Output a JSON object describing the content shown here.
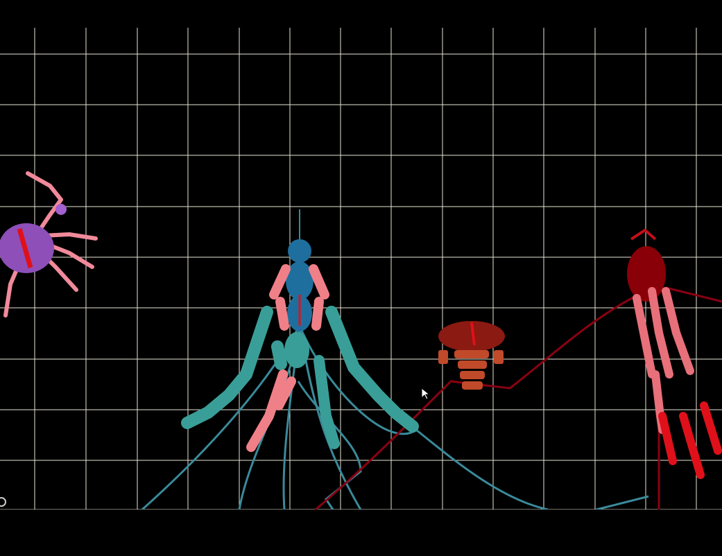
{
  "colors": {
    "background": "#000000",
    "grid": "#e8e6d6",
    "crab_body": "#8e4fb8",
    "crab_legs": "#f08a9a",
    "centipede_body": "#1f6f9e",
    "centipede_segments": "#3a9e98",
    "centipede_limbs": "#f08088",
    "tendrils": "#3a8a9a",
    "jelly_body": "#8a1a12",
    "jelly_accent": "#c04a2a",
    "shrimp_body": "#8a0008",
    "shrimp_limbs": "#e8707a",
    "shrimp_tail": "#e0101a",
    "highlight": "#e0101a"
  },
  "creatures": [
    {
      "kind": "crab-creature",
      "color_key": "crab_body"
    },
    {
      "kind": "centipede-creature",
      "color_key": "centipede_body"
    },
    {
      "kind": "jellyfish-creature",
      "color_key": "jelly_body"
    },
    {
      "kind": "shrimp-creature",
      "color_key": "shrimp_body"
    }
  ],
  "icons": {
    "cursor": "arrow-cursor-icon",
    "corner": "circle-icon"
  }
}
